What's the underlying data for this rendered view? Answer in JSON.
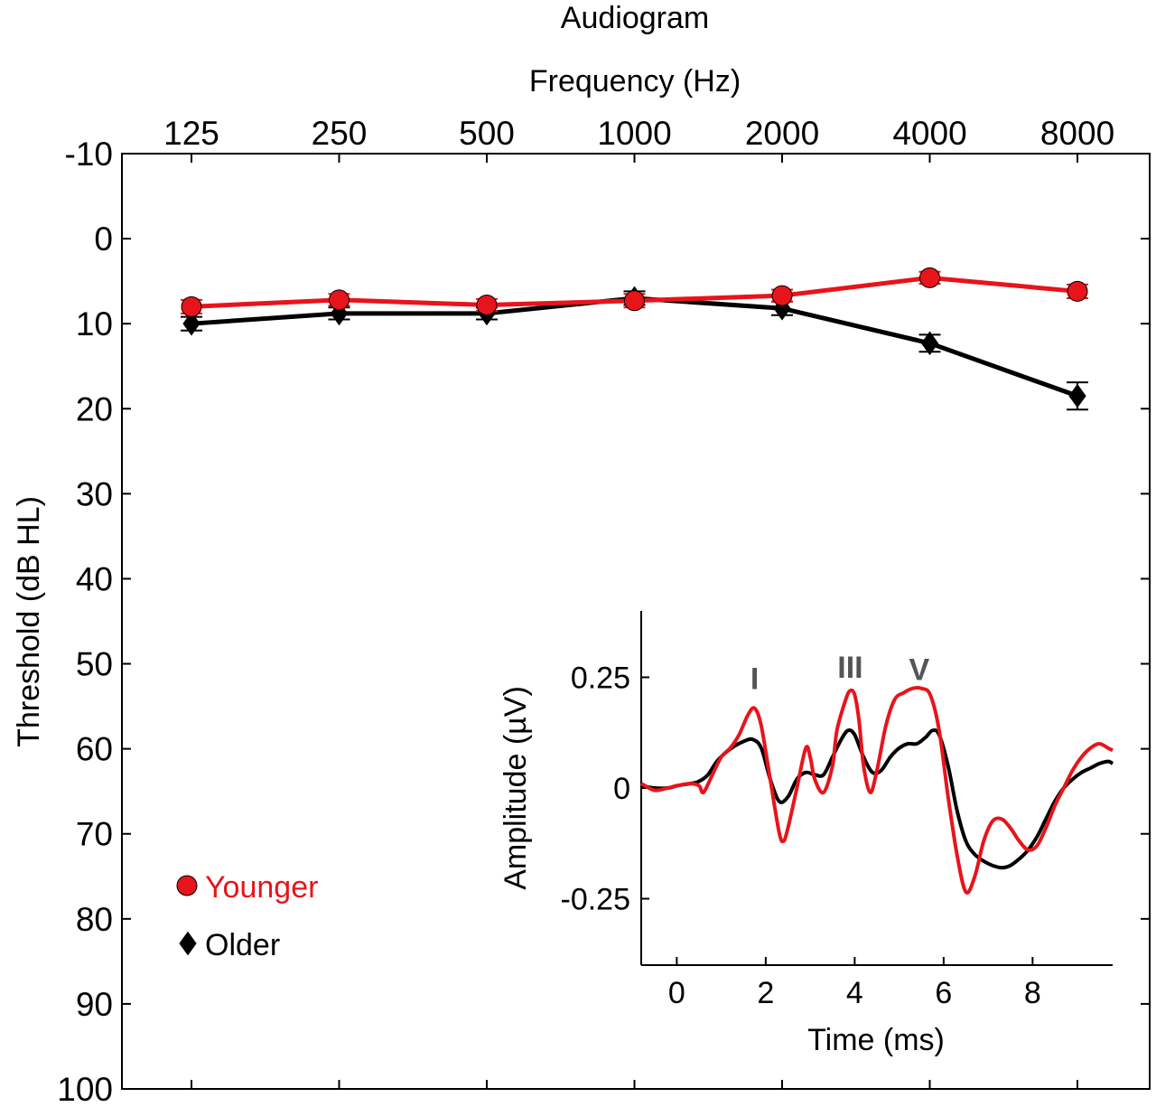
{
  "chart_data": [
    {
      "type": "line",
      "title": "Audiogram",
      "xlabel": "Frequency (Hz)",
      "ylabel": "Threshold (dB HL)",
      "categories": [
        "125",
        "250",
        "500",
        "1000",
        "2000",
        "4000",
        "8000"
      ],
      "yticks": [
        "-10",
        "0",
        "10",
        "20",
        "30",
        "40",
        "50",
        "60",
        "70",
        "80",
        "90",
        "100"
      ],
      "ylim": [
        -10,
        100
      ],
      "y_inverted": true,
      "legend_position": "bottom-left",
      "series": [
        {
          "name": "Younger",
          "color": "#e8141b",
          "marker": "circle",
          "values": [
            8,
            7.2,
            7.8,
            7.3,
            6.7,
            4.6,
            6.2
          ],
          "errors": [
            0.8,
            0.7,
            0.7,
            0.8,
            0.7,
            0.7,
            0.8
          ]
        },
        {
          "name": "Older",
          "color": "#000000",
          "marker": "diamond",
          "values": [
            10,
            8.8,
            8.8,
            7,
            8.2,
            12.3,
            18.5
          ],
          "errors": [
            0.8,
            0.7,
            0.7,
            0.8,
            0.8,
            1.0,
            1.6
          ]
        }
      ]
    },
    {
      "type": "line",
      "title": "",
      "xlabel": "Time (ms)",
      "ylabel": "Amplitude (µV)",
      "xlim": [
        -0.8,
        9.8
      ],
      "ylim": [
        -0.4,
        0.4
      ],
      "xticks": [
        "0",
        "2",
        "4",
        "6",
        "8"
      ],
      "yticks": [
        "-0.25",
        "0",
        "0.25"
      ],
      "annotations": [
        {
          "text": "I",
          "x": 1.75,
          "y": 0.24
        },
        {
          "text": "III",
          "x": 3.9,
          "y": 0.265
        },
        {
          "text": "V",
          "x": 5.45,
          "y": 0.26
        }
      ],
      "series": [
        {
          "name": "Younger",
          "color": "#e8141b",
          "x": [
            -0.8,
            -0.5,
            -0.2,
            0.0,
            0.3,
            0.5,
            0.6,
            0.8,
            1.0,
            1.2,
            1.4,
            1.6,
            1.75,
            1.9,
            2.1,
            2.3,
            2.4,
            2.5,
            2.7,
            2.9,
            3.0,
            3.1,
            3.3,
            3.5,
            3.6,
            3.8,
            3.9,
            4.0,
            4.1,
            4.2,
            4.35,
            4.5,
            4.7,
            4.9,
            5.1,
            5.3,
            5.5,
            5.7,
            5.9,
            6.1,
            6.3,
            6.5,
            6.7,
            6.9,
            7.1,
            7.3,
            7.5,
            7.7,
            7.9,
            8.1,
            8.3,
            8.5,
            8.7,
            8.9,
            9.1,
            9.3,
            9.5,
            9.7,
            9.8
          ],
          "y": [
            0.01,
            -0.005,
            0.0,
            0.005,
            0.01,
            0.005,
            -0.01,
            0.03,
            0.07,
            0.09,
            0.12,
            0.165,
            0.18,
            0.14,
            0.02,
            -0.1,
            -0.12,
            -0.09,
            0.0,
            0.09,
            0.07,
            0.02,
            -0.01,
            0.05,
            0.13,
            0.2,
            0.22,
            0.21,
            0.15,
            0.05,
            -0.01,
            0.04,
            0.14,
            0.2,
            0.215,
            0.225,
            0.225,
            0.21,
            0.13,
            -0.02,
            -0.15,
            -0.235,
            -0.2,
            -0.12,
            -0.075,
            -0.07,
            -0.09,
            -0.12,
            -0.14,
            -0.13,
            -0.09,
            -0.04,
            0.0,
            0.04,
            0.07,
            0.09,
            0.1,
            0.09,
            0.085
          ]
        },
        {
          "name": "Older",
          "color": "#000000",
          "x": [
            -0.8,
            -0.5,
            -0.2,
            0.0,
            0.3,
            0.5,
            0.7,
            0.9,
            1.1,
            1.3,
            1.5,
            1.7,
            1.9,
            2.1,
            2.3,
            2.5,
            2.7,
            2.9,
            3.1,
            3.3,
            3.5,
            3.7,
            3.85,
            4.0,
            4.2,
            4.4,
            4.6,
            4.8,
            5.0,
            5.2,
            5.4,
            5.6,
            5.75,
            5.9,
            6.1,
            6.3,
            6.5,
            6.7,
            6.9,
            7.1,
            7.3,
            7.5,
            7.7,
            7.9,
            8.1,
            8.3,
            8.5,
            8.7,
            8.9,
            9.1,
            9.3,
            9.5,
            9.7,
            9.8
          ],
          "y": [
            0.005,
            0.0,
            0.0,
            0.005,
            0.01,
            0.015,
            0.03,
            0.06,
            0.08,
            0.095,
            0.105,
            0.11,
            0.09,
            0.02,
            -0.03,
            -0.02,
            0.02,
            0.035,
            0.03,
            0.03,
            0.07,
            0.11,
            0.13,
            0.12,
            0.07,
            0.035,
            0.04,
            0.07,
            0.09,
            0.1,
            0.1,
            0.115,
            0.13,
            0.12,
            0.05,
            -0.05,
            -0.12,
            -0.15,
            -0.165,
            -0.175,
            -0.18,
            -0.175,
            -0.16,
            -0.14,
            -0.11,
            -0.07,
            -0.03,
            0.0,
            0.02,
            0.035,
            0.045,
            0.055,
            0.06,
            0.055
          ]
        }
      ]
    }
  ]
}
